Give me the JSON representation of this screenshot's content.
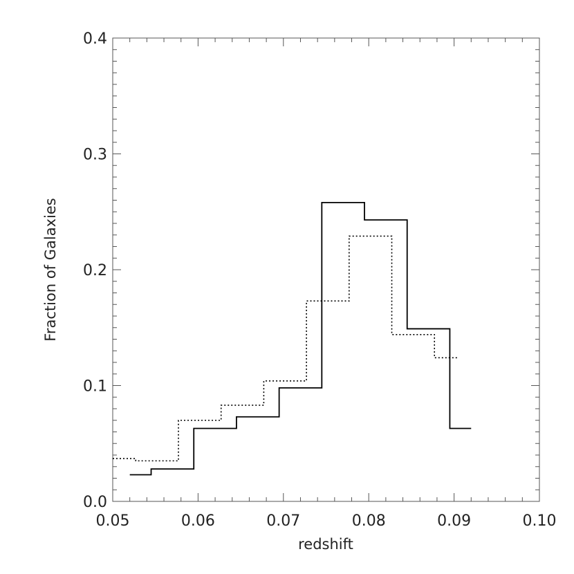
{
  "chart_data": {
    "type": "line",
    "xlabel": "redshift",
    "ylabel": "Fraction of Galaxies",
    "xlim": [
      0.05,
      0.1
    ],
    "ylim": [
      0.0,
      0.4
    ],
    "x_ticks": [
      0.05,
      0.06,
      0.07,
      0.08,
      0.09,
      0.1
    ],
    "x_tick_labels": [
      "0.05",
      "0.06",
      "0.07",
      "0.08",
      "0.09",
      "0.10"
    ],
    "y_ticks": [
      0.0,
      0.1,
      0.2,
      0.3,
      0.4
    ],
    "y_tick_labels": [
      "0.0",
      "0.1",
      "0.2",
      "0.3",
      "0.4"
    ],
    "grid": false,
    "series": [
      {
        "line_style": "solid",
        "color": "#000000",
        "x": [
          0.052,
          0.0545,
          0.0595,
          0.0645,
          0.0695,
          0.0745,
          0.0795,
          0.0845,
          0.0895,
          0.092
        ],
        "y": [
          0.023,
          0.028,
          0.063,
          0.073,
          0.098,
          0.258,
          0.243,
          0.149,
          0.063,
          0.063
        ]
      },
      {
        "line_style": "dotted",
        "color": "#000000",
        "x": [
          0.05,
          0.0527,
          0.0577,
          0.0627,
          0.0677,
          0.0727,
          0.0777,
          0.0827,
          0.0877,
          0.0905
        ],
        "y": [
          0.037,
          0.035,
          0.07,
          0.083,
          0.104,
          0.173,
          0.229,
          0.144,
          0.124,
          0.124
        ]
      }
    ]
  }
}
